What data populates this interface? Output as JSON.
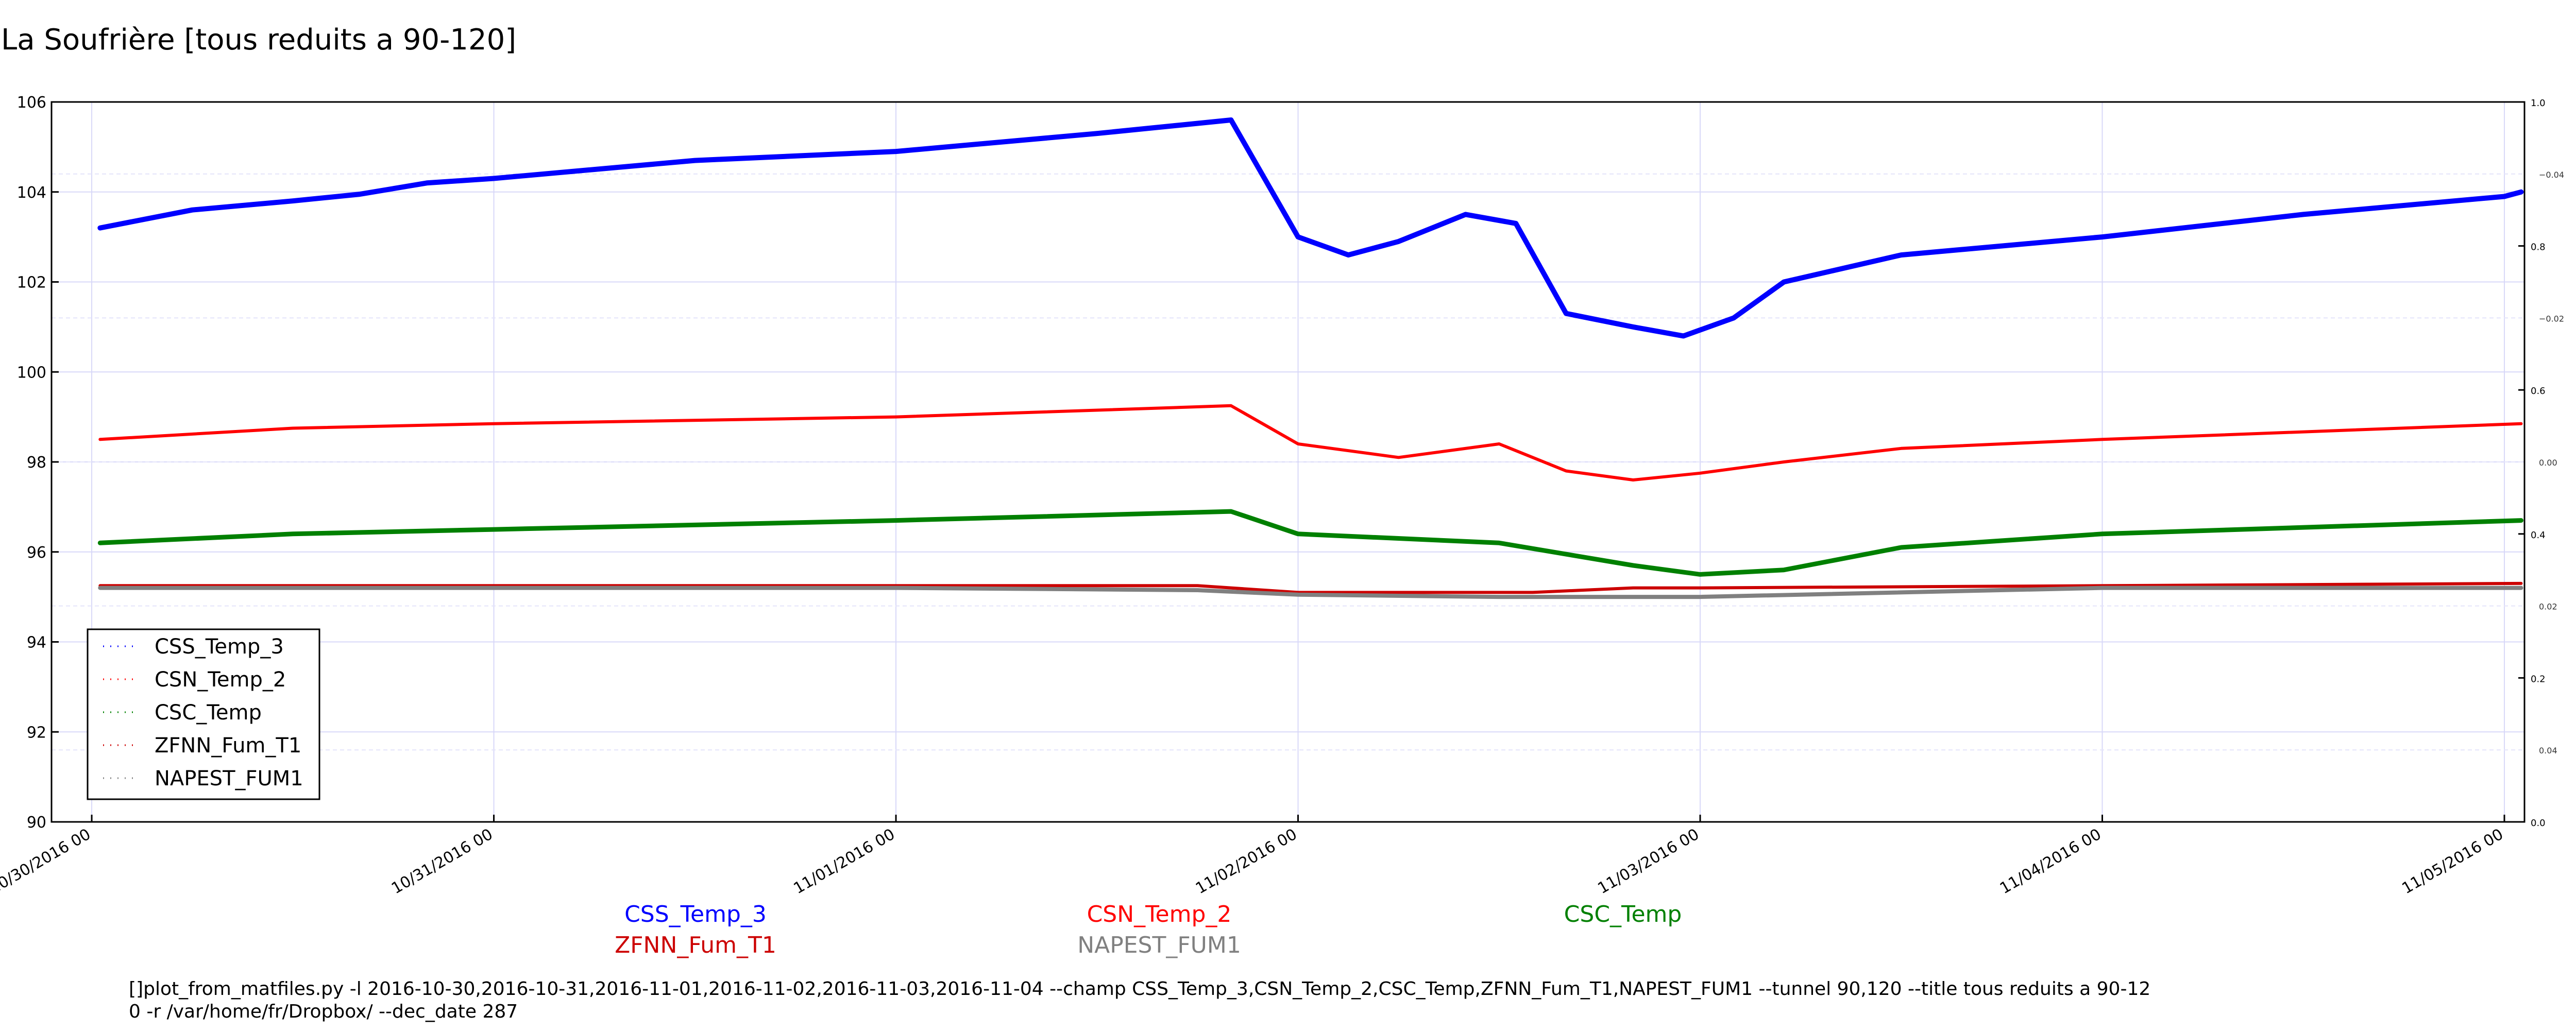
{
  "chart_data": {
    "type": "line",
    "title": "La Soufrière [tous reduits a 90-120]",
    "xlabel": "",
    "ylabel": "",
    "x_ticks": [
      "10/30/2016 00",
      "10/31/2016 00",
      "11/01/2016 00",
      "11/02/2016 00",
      "11/03/2016 00",
      "11/04/2016 00",
      "11/05/2016 00"
    ],
    "xlim_days": [
      -0.1,
      6.05
    ],
    "ylim": [
      90,
      106
    ],
    "y_ticks": [
      "90",
      "92",
      "94",
      "96",
      "98",
      "100",
      "102",
      "104",
      "106"
    ],
    "right_axis_ticks_outer": [
      "0.0",
      "0.2",
      "0.4",
      "0.6",
      "0.8",
      "1.0"
    ],
    "right_axis_ticks_inner": [
      "−0.04",
      "−0.02",
      "0.00",
      "0.02",
      "0.04"
    ],
    "grid": true,
    "legend_position": "lower-left",
    "series": [
      {
        "name": "CSS_Temp_3",
        "color": "#0000ff",
        "x": [
          "10/30/2016 00:30",
          "10/30/2016 06",
          "10/30/2016 12",
          "10/30/2016 16",
          "10/30/2016 20",
          "10/31/2016 00",
          "10/31/2016 12",
          "11/01/2016 00",
          "11/01/2016 12",
          "11/01/2016 20",
          "11/02/2016 00",
          "11/02/2016 03",
          "11/02/2016 06",
          "11/02/2016 10",
          "11/02/2016 13",
          "11/02/2016 16",
          "11/02/2016 20",
          "11/02/2016 23",
          "11/03/2016 02",
          "11/03/2016 05",
          "11/03/2016 12",
          "11/04/2016 00",
          "11/04/2016 12",
          "11/05/2016 00",
          "11/05/2016 01"
        ],
        "y": [
          103.2,
          103.6,
          103.8,
          103.95,
          104.2,
          104.3,
          104.7,
          104.9,
          105.3,
          105.6,
          103.0,
          102.6,
          102.9,
          103.5,
          103.3,
          101.3,
          101.0,
          100.8,
          101.2,
          102.0,
          102.6,
          103.0,
          103.5,
          103.9,
          104.0
        ]
      },
      {
        "name": "CSN_Temp_2",
        "color": "#ff0000",
        "x": [
          "10/30/2016 00:30",
          "10/30/2016 12",
          "10/31/2016 00",
          "11/01/2016 00",
          "11/01/2016 20",
          "11/02/2016 00",
          "11/02/2016 06",
          "11/02/2016 12",
          "11/02/2016 16",
          "11/02/2016 20",
          "11/03/2016 00",
          "11/03/2016 05",
          "11/03/2016 12",
          "11/04/2016 00",
          "11/05/2016 01"
        ],
        "y": [
          98.5,
          98.75,
          98.85,
          99.0,
          99.25,
          98.4,
          98.1,
          98.4,
          97.8,
          97.6,
          97.75,
          98.0,
          98.3,
          98.5,
          98.85
        ]
      },
      {
        "name": "CSC_Temp",
        "color": "#008000",
        "x": [
          "10/30/2016 00:30",
          "10/30/2016 12",
          "10/31/2016 00",
          "11/01/2016 00",
          "11/01/2016 20",
          "11/02/2016 00",
          "11/02/2016 12",
          "11/02/2016 20",
          "11/03/2016 00",
          "11/03/2016 05",
          "11/03/2016 12",
          "11/04/2016 00",
          "11/05/2016 01"
        ],
        "y": [
          96.2,
          96.4,
          96.5,
          96.7,
          96.9,
          96.4,
          96.2,
          95.7,
          95.5,
          95.6,
          96.1,
          96.4,
          96.7
        ]
      },
      {
        "name": "ZFNN_Fum_T1",
        "color": "#cc0000",
        "x": [
          "10/30/2016 00:30",
          "11/01/2016 00",
          "11/01/2016 18",
          "11/02/2016 00",
          "11/02/2016 08",
          "11/02/2016 14",
          "11/02/2016 20",
          "11/03/2016 00",
          "11/04/2016 00",
          "11/05/2016 01"
        ],
        "y": [
          95.25,
          95.25,
          95.25,
          95.1,
          95.1,
          95.1,
          95.2,
          95.2,
          95.25,
          95.3
        ]
      },
      {
        "name": "NAPEST_FUM1",
        "color": "#808080",
        "x": [
          "10/30/2016 00:30",
          "11/01/2016 00",
          "11/01/2016 18",
          "11/02/2016 00",
          "11/02/2016 12",
          "11/02/2016 20",
          "11/03/2016 00",
          "11/04/2016 00",
          "11/05/2016 01"
        ],
        "y": [
          95.2,
          95.2,
          95.15,
          95.05,
          95.0,
          95.0,
          95.0,
          95.2,
          95.2
        ]
      }
    ]
  },
  "footer_labels": [
    {
      "text": "CSS_Temp_3",
      "color": "#0000ff"
    },
    {
      "text": "CSN_Temp_2",
      "color": "#ff0000"
    },
    {
      "text": "CSC_Temp",
      "color": "#008000"
    },
    {
      "text": "ZFNN_Fum_T1",
      "color": "#cc0000"
    },
    {
      "text": "NAPEST_FUM1",
      "color": "#808080"
    }
  ],
  "command_line": [
    "[]plot_from_matfiles.py -l 2016-10-30,2016-10-31,2016-11-01,2016-11-02,2016-11-03,2016-11-04 --champ CSS_Temp_3,CSN_Temp_2,CSC_Temp,ZFNN_Fum_T1,NAPEST_FUM1 --tunnel 90,120 --title tous reduits a 90-12",
    "0 -r /var/home/fr/Dropbox/ --dec_date 287"
  ]
}
